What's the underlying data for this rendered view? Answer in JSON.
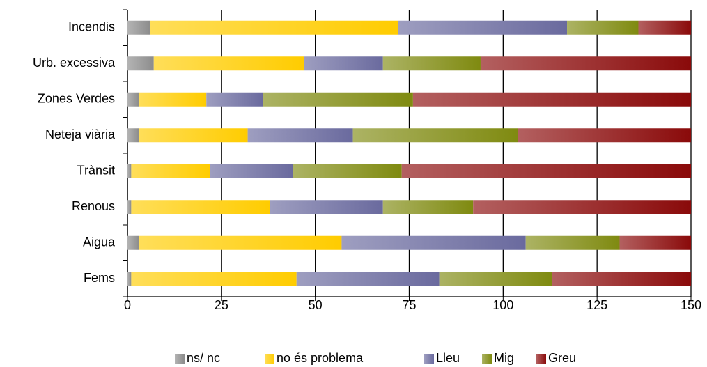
{
  "chart_data": {
    "type": "stacked_barh",
    "categories": [
      "Incendis",
      "Urb. excessiva",
      "Zones Verdes",
      "Neteja viària",
      "Trànsit",
      "Renous",
      "Aigua",
      "Fems"
    ],
    "series": [
      {
        "name": "ns/ nc",
        "color": "#8c8c8c",
        "values": [
          6,
          7,
          3,
          3,
          1,
          1,
          3,
          1
        ]
      },
      {
        "name": "no és problema",
        "color": "#ffcc00",
        "values": [
          66,
          40,
          18,
          29,
          21,
          37,
          54,
          44
        ]
      },
      {
        "name": "Lleu",
        "color": "#6a6a9e",
        "values": [
          45,
          21,
          15,
          28,
          22,
          30,
          49,
          38
        ]
      },
      {
        "name": "Mig",
        "color": "#7f8a10",
        "values": [
          19,
          26,
          40,
          44,
          29,
          24,
          25,
          30
        ]
      },
      {
        "name": "Greu",
        "color": "#8a0a0a",
        "values": [
          14,
          56,
          74,
          46,
          77,
          58,
          19,
          37
        ]
      }
    ],
    "xlim": [
      0,
      150
    ],
    "xticks": [
      0,
      25,
      50,
      75,
      100,
      125,
      150
    ],
    "grid": true,
    "legend": "bottom"
  }
}
